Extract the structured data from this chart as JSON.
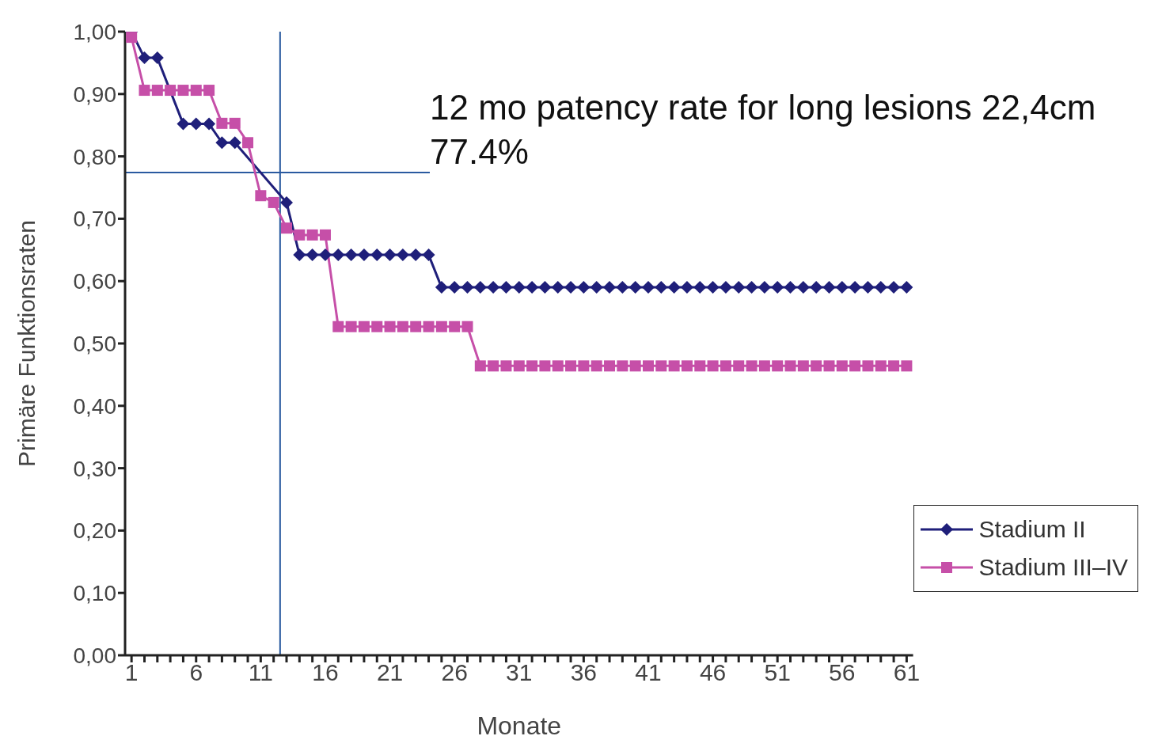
{
  "chart_data": {
    "type": "line",
    "xlabel": "Monate",
    "ylabel": "Primäre Funktionsraten",
    "x": [
      1,
      2,
      3,
      4,
      5,
      6,
      7,
      8,
      9,
      10,
      11,
      12,
      13,
      14,
      15,
      16,
      17,
      18,
      19,
      20,
      21,
      22,
      23,
      24,
      25,
      26,
      27,
      28,
      29,
      30,
      31,
      32,
      33,
      34,
      35,
      36,
      37,
      38,
      39,
      40,
      41,
      42,
      43,
      44,
      45,
      46,
      47,
      48,
      49,
      50,
      51,
      52,
      53,
      54,
      55,
      56,
      57,
      58,
      59,
      60,
      61
    ],
    "series": [
      {
        "name": "Stadium II",
        "color": "#1f1f7a",
        "marker": "diamond",
        "values": [
          1.0,
          0.958,
          0.958,
          null,
          0.852,
          0.852,
          0.852,
          0.822,
          0.822,
          null,
          null,
          null,
          0.726,
          0.642,
          0.642,
          0.642,
          0.642,
          0.642,
          0.642,
          0.642,
          0.642,
          0.642,
          0.642,
          0.642,
          0.59,
          0.59,
          0.59,
          0.59,
          0.59,
          0.59,
          0.59,
          0.59,
          0.59,
          0.59,
          0.59,
          0.59,
          0.59,
          0.59,
          0.59,
          0.59,
          0.59,
          0.59,
          0.59,
          0.59,
          0.59,
          0.59,
          0.59,
          0.59,
          0.59,
          0.59,
          0.59,
          0.59,
          0.59,
          0.59,
          0.59,
          0.59,
          0.59,
          0.59,
          0.59,
          0.59,
          0.59
        ]
      },
      {
        "name": "Stadium III–IV",
        "color": "#c64fa8",
        "marker": "square",
        "values": [
          0.991,
          0.906,
          0.906,
          0.906,
          0.906,
          0.906,
          0.906,
          0.853,
          0.853,
          0.822,
          0.737,
          0.726,
          0.685,
          0.674,
          0.674,
          0.674,
          0.527,
          0.527,
          0.527,
          0.527,
          0.527,
          0.527,
          0.527,
          0.527,
          0.527,
          0.527,
          0.527,
          0.464,
          0.464,
          0.464,
          0.464,
          0.464,
          0.464,
          0.464,
          0.464,
          0.464,
          0.464,
          0.464,
          0.464,
          0.464,
          0.464,
          0.464,
          0.464,
          0.464,
          0.464,
          0.464,
          0.464,
          0.464,
          0.464,
          0.464,
          0.464,
          0.464,
          0.464,
          0.464,
          0.464,
          0.464,
          0.464,
          0.464,
          0.464,
          0.464,
          0.464
        ]
      }
    ],
    "xlim": [
      0.5,
      61.5
    ],
    "xticks": [
      1,
      {
        "value": 2,
        "label": null
      },
      {
        "value": 3,
        "label": null
      },
      {
        "value": 4,
        "label": null
      },
      {
        "value": 5,
        "label": null
      },
      6,
      {
        "value": 7,
        "label": null
      },
      {
        "value": 8,
        "label": null
      },
      {
        "value": 9,
        "label": null
      },
      {
        "value": 10,
        "label": null
      },
      11,
      {
        "value": 12,
        "label": null
      },
      {
        "value": 13,
        "label": null
      },
      {
        "value": 14,
        "label": null
      },
      {
        "value": 15,
        "label": null
      },
      16,
      {
        "value": 17,
        "label": null
      },
      {
        "value": 18,
        "label": null
      },
      {
        "value": 19,
        "label": null
      },
      {
        "value": 20,
        "label": null
      },
      21,
      {
        "value": 22,
        "label": null
      },
      {
        "value": 23,
        "label": null
      },
      {
        "value": 24,
        "label": null
      },
      {
        "value": 25,
        "label": null
      },
      26,
      {
        "value": 27,
        "label": null
      },
      {
        "value": 28,
        "label": null
      },
      {
        "value": 29,
        "label": null
      },
      {
        "value": 30,
        "label": null
      },
      31,
      {
        "value": 32,
        "label": null
      },
      {
        "value": 33,
        "label": null
      },
      {
        "value": 34,
        "label": null
      },
      {
        "value": 35,
        "label": null
      },
      36,
      {
        "value": 37,
        "label": null
      },
      {
        "value": 38,
        "label": null
      },
      {
        "value": 39,
        "label": null
      },
      {
        "value": 40,
        "label": null
      },
      41,
      {
        "value": 42,
        "label": null
      },
      {
        "value": 43,
        "label": null
      },
      {
        "value": 44,
        "label": null
      },
      {
        "value": 45,
        "label": null
      },
      46,
      {
        "value": 47,
        "label": null
      },
      {
        "value": 48,
        "label": null
      },
      {
        "value": 49,
        "label": null
      },
      {
        "value": 50,
        "label": null
      },
      51,
      {
        "value": 52,
        "label": null
      },
      {
        "value": 53,
        "label": null
      },
      {
        "value": 54,
        "label": null
      },
      {
        "value": 55,
        "label": null
      },
      56,
      {
        "value": 57,
        "label": null
      },
      {
        "value": 58,
        "label": null
      },
      {
        "value": 59,
        "label": null
      },
      {
        "value": 60,
        "label": null
      },
      61
    ],
    "ylim": [
      0,
      1
    ],
    "yticks": [
      {
        "value": 0,
        "label": "0,00"
      },
      {
        "value": 0.1,
        "label": "0,10"
      },
      {
        "value": 0.2,
        "label": "0,20"
      },
      {
        "value": 0.3,
        "label": "0,30"
      },
      {
        "value": 0.4,
        "label": "0,40"
      },
      {
        "value": 0.5,
        "label": "0,50"
      },
      {
        "value": 0.6,
        "label": "0,60"
      },
      {
        "value": 0.7,
        "label": "0,70"
      },
      {
        "value": 0.8,
        "label": "0,80"
      },
      {
        "value": 0.9,
        "label": "0,90"
      },
      {
        "value": 1,
        "label": "1,00"
      }
    ],
    "ref_lines": [
      {
        "axis": "y",
        "value": 0.774,
        "color": "#2a5aa0"
      },
      {
        "axis": "x",
        "value": 12.5,
        "color": "#2a5aa0"
      }
    ],
    "annotations": [
      "12 mo patency rate for long lesions 22,4cm\n77.4%"
    ],
    "legend": "bottom right",
    "grid": false
  }
}
